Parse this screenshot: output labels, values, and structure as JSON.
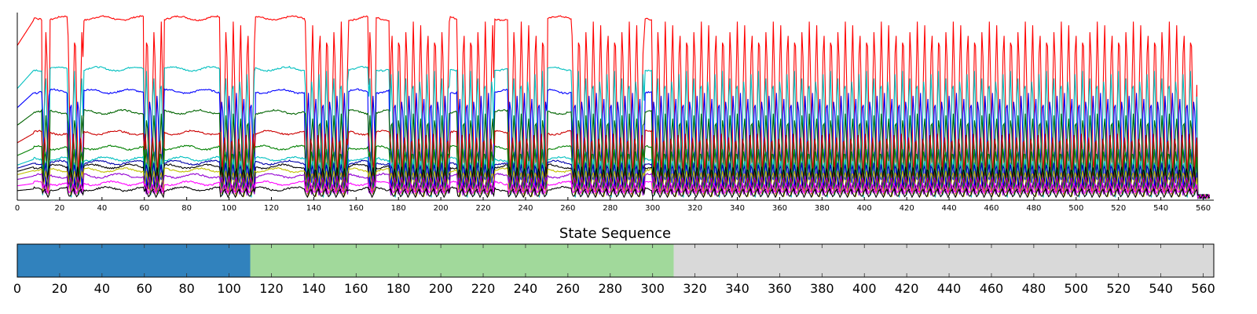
{
  "chart_data": [
    {
      "type": "line",
      "title": "",
      "xlabel": "",
      "ylabel": "",
      "xlim": [
        0,
        565
      ],
      "x_ticks": [
        0,
        20,
        40,
        60,
        80,
        100,
        120,
        140,
        160,
        180,
        200,
        220,
        240,
        260,
        280,
        300,
        320,
        340,
        360,
        380,
        400,
        420,
        440,
        460,
        480,
        500,
        520,
        540,
        560
      ],
      "y_ticks_shown": false,
      "grid": false,
      "legend": "none",
      "series_count_approx": 30,
      "signal_end_x": 557,
      "oscillating_segments": [
        [
          12,
          15
        ],
        [
          24,
          31
        ],
        [
          60,
          69
        ],
        [
          96,
          112
        ],
        [
          136,
          156
        ],
        [
          166,
          169
        ],
        [
          176,
          204
        ],
        [
          208,
          225
        ],
        [
          232,
          250
        ],
        [
          262,
          296
        ],
        [
          300,
          557
        ]
      ],
      "main_series": [
        {
          "color": "#ff0000",
          "base_level": 0.97
        },
        {
          "color": "#00bfbf",
          "base_level": 0.7
        },
        {
          "color": "#0000ff",
          "base_level": 0.58
        },
        {
          "color": "#006400",
          "base_level": 0.47
        },
        {
          "color": "#cc0000",
          "base_level": 0.36
        },
        {
          "color": "#008000",
          "base_level": 0.28
        },
        {
          "color": "#00bfbf",
          "base_level": 0.22
        },
        {
          "color": "#0000aa",
          "base_level": 0.2
        },
        {
          "color": "#000000",
          "base_level": 0.18
        },
        {
          "color": "#bfbf00",
          "base_level": 0.16
        },
        {
          "color": "#9400d3",
          "base_level": 0.13
        },
        {
          "color": "#ff00ff",
          "base_level": 0.09
        },
        {
          "color": "#000000",
          "base_level": 0.06
        }
      ]
    },
    {
      "type": "bar",
      "orientation": "horizontal-timeline",
      "title": "State Sequence",
      "xlim": [
        0,
        565
      ],
      "x_ticks": [
        0,
        20,
        40,
        60,
        80,
        100,
        120,
        140,
        160,
        180,
        200,
        220,
        240,
        260,
        280,
        300,
        320,
        340,
        360,
        380,
        400,
        420,
        440,
        460,
        480,
        500,
        520,
        540,
        560
      ],
      "segments": [
        {
          "start": 0,
          "end": 110,
          "color": "#3182bd"
        },
        {
          "start": 110,
          "end": 310,
          "color": "#a1d99b"
        },
        {
          "start": 310,
          "end": 565,
          "color": "#d9d9d9"
        }
      ]
    }
  ]
}
